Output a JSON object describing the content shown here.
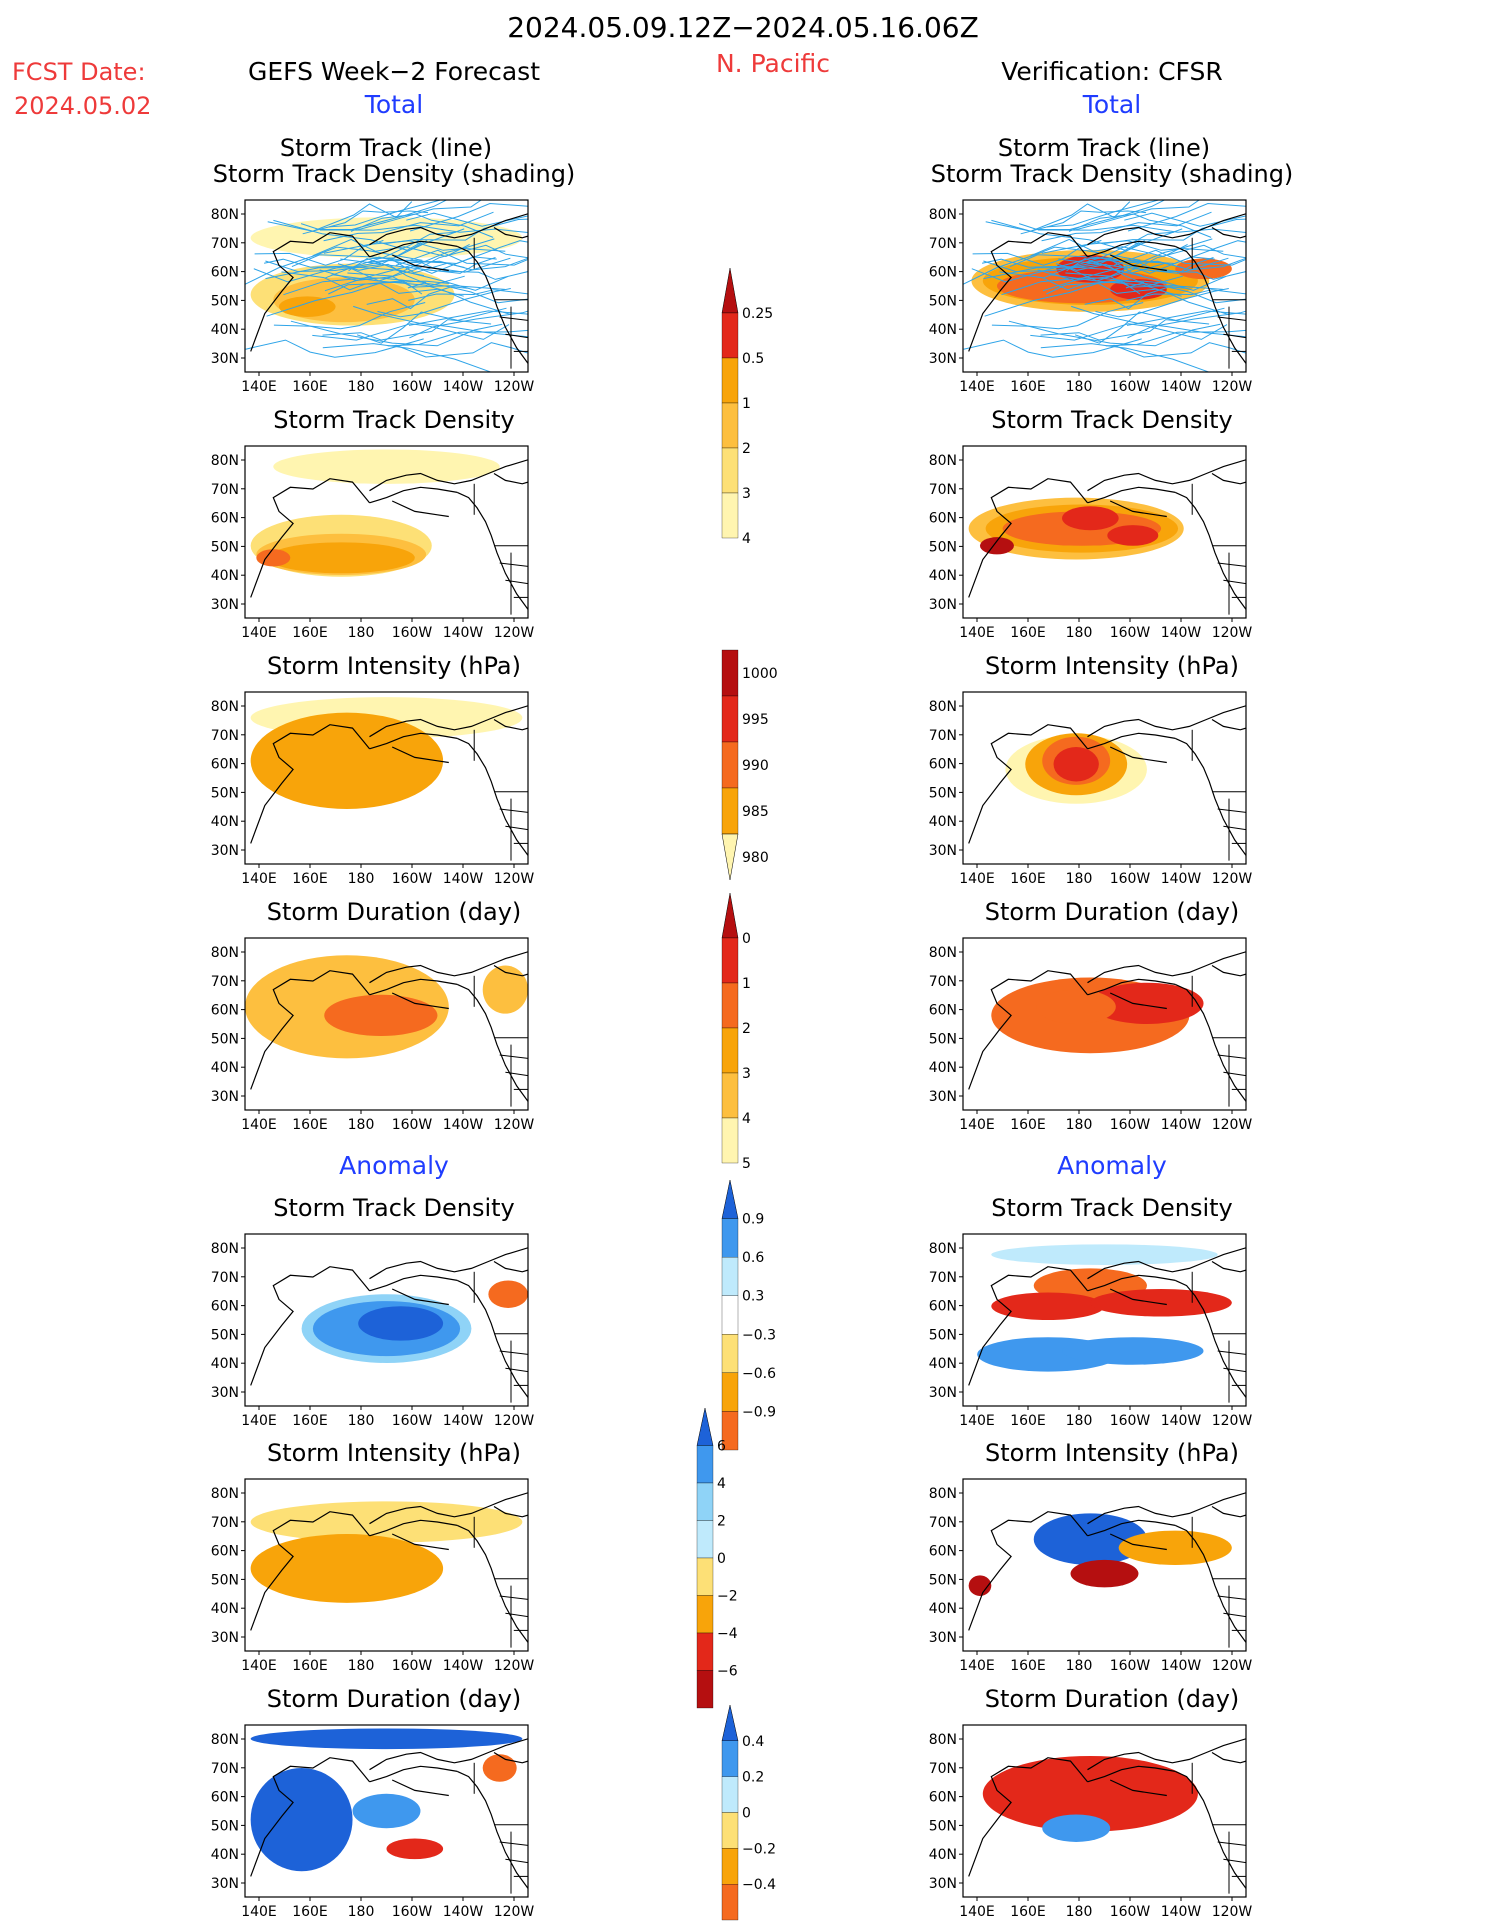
{
  "header": {
    "date_range": "2024.05.09.12Z−2024.05.16.06Z",
    "fcst_label": "FCST Date:",
    "fcst_date": "2024.05.02",
    "left_title": "GEFS Week−2 Forecast",
    "region": "N. Pacific",
    "right_title": "Verification: CFSR",
    "section_total": "Total",
    "section_anomaly": "Anomaly"
  },
  "panel_titles": {
    "track_line": "Storm Track (line)",
    "track_shading": "Storm Track Density (shading)",
    "density": "Storm Track Density",
    "intensity": "Storm Intensity (hPa)",
    "duration": "Storm Duration (day)"
  },
  "axes": {
    "lat_ticks": [
      "80N",
      "70N",
      "60N",
      "50N",
      "40N",
      "30N"
    ],
    "lon_ticks": [
      "140E",
      "160E",
      "180",
      "160W",
      "140W",
      "120W"
    ]
  },
  "colors": {
    "c_very_light": "#fff5b0",
    "c_light": "#fde076",
    "c_yellow_orange": "#fdbf3f",
    "c_orange": "#f8a40a",
    "c_dark_orange": "#f56a1f",
    "c_red": "#e3281a",
    "c_dark_red": "#b50f10",
    "c_light_blue": "#bfeafc",
    "c_sky": "#8fd3f7",
    "c_blue": "#3f98ee",
    "c_dark_blue": "#1d62d8",
    "track_line": "#2ea4e8"
  },
  "chart_data": [
    {
      "type": "heatmap",
      "id": "colorbar-total-density",
      "levels": [
        "0.25",
        "0.5",
        "1",
        "2",
        "3",
        "4"
      ],
      "colors": [
        "#fff5b0",
        "#fde076",
        "#fdbf3f",
        "#f8a40a",
        "#e3281a",
        "#b50f10"
      ]
    },
    {
      "type": "heatmap",
      "id": "colorbar-total-intensity",
      "levels": [
        "1000",
        "995",
        "990",
        "985",
        "980"
      ],
      "colors": [
        "#fff5b0",
        "#f8a40a",
        "#f56a1f",
        "#e3281a",
        "#b50f10"
      ]
    },
    {
      "type": "heatmap",
      "id": "colorbar-total-duration",
      "levels": [
        "0",
        "1",
        "2",
        "3",
        "4",
        "5"
      ],
      "colors": [
        "#fff5b0",
        "#fdbf3f",
        "#f8a40a",
        "#f56a1f",
        "#e3281a",
        "#b50f10"
      ]
    },
    {
      "type": "heatmap",
      "id": "colorbar-anom-density",
      "levels": [
        "0.9",
        "0.6",
        "0.3",
        "−0.3",
        "−0.6",
        "−0.9"
      ],
      "colors": [
        "#f56a1f",
        "#f8a40a",
        "#fde076",
        "#ffffff",
        "#bfeafc",
        "#3f98ee",
        "#1d62d8"
      ]
    },
    {
      "type": "heatmap",
      "id": "colorbar-anom-intensity",
      "levels": [
        "6",
        "4",
        "2",
        "0",
        "−2",
        "−4",
        "−6"
      ],
      "colors": [
        "#b50f10",
        "#e3281a",
        "#f8a40a",
        "#fde076",
        "#bfeafc",
        "#8fd3f7",
        "#3f98ee",
        "#1d62d8"
      ]
    },
    {
      "type": "heatmap",
      "id": "colorbar-anom-duration",
      "levels": [
        "0.4",
        "0.2",
        "0",
        "−0.2",
        "−0.4"
      ],
      "colors": [
        "#f56a1f",
        "#f8a40a",
        "#fde076",
        "#bfeafc",
        "#3f98ee",
        "#1d62d8"
      ]
    }
  ]
}
